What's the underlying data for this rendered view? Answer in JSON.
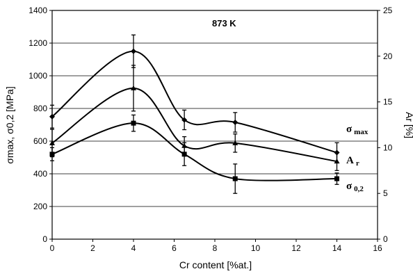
{
  "chart_data": {
    "type": "line",
    "annotation": "873 K",
    "xlabel": "Cr content [%at.]",
    "ylabel_left": "σmax, σ0,2 [MPa]",
    "ylabel_right": "Ar [%]",
    "xlim": [
      0,
      16
    ],
    "ylim_left": [
      0,
      1400
    ],
    "ylim_right": [
      0,
      25
    ],
    "x_ticks": [
      "0",
      "2",
      "4",
      "6",
      "8",
      "10",
      "12",
      "14",
      "16"
    ],
    "y_left_ticks": [
      "0",
      "200",
      "400",
      "600",
      "800",
      "1000",
      "1200",
      "1400"
    ],
    "y_right_ticks": [
      "0",
      "5",
      "10",
      "15",
      "20",
      "25"
    ],
    "grid": true,
    "series": [
      {
        "name": "σ max",
        "label_main": "σ",
        "label_sub": "max",
        "axis": "left",
        "marker": "diamond",
        "x": [
          0,
          4,
          6.5,
          9,
          14
        ],
        "y": [
          750,
          1150,
          730,
          715,
          530
        ],
        "err": [
          70,
          100,
          60,
          60,
          60
        ]
      },
      {
        "name": "A r",
        "label_main": "A",
        "label_sub": "r",
        "axis": "right",
        "marker": "triangle",
        "x": [
          0,
          4,
          6.5,
          9,
          14
        ],
        "y": [
          10.5,
          16.5,
          10.2,
          10.5,
          8.5
        ],
        "err": [
          1.5,
          2.5,
          1.0,
          1.0,
          1.0
        ]
      },
      {
        "name": "σ 0,2",
        "label_main": "σ",
        "label_sub": "0,2",
        "axis": "left",
        "marker": "square",
        "x": [
          0,
          4,
          6.5,
          9,
          14
        ],
        "y": [
          520,
          710,
          520,
          370,
          370
        ],
        "err": [
          40,
          50,
          70,
          90,
          35
        ]
      }
    ]
  }
}
